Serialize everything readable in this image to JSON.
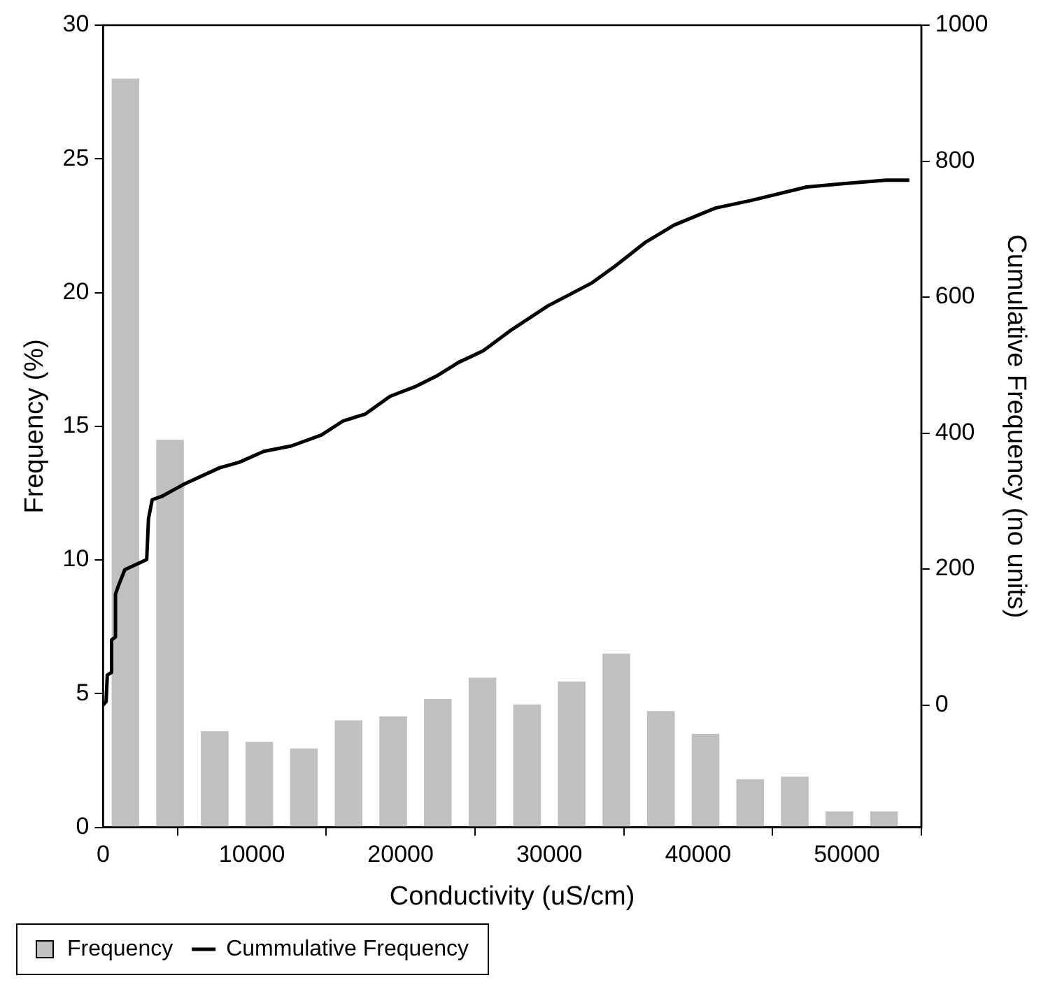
{
  "chart_data": {
    "type": "histogram",
    "xlabel": "Conductivity (uS/cm)",
    "ylabel": "Frequency (%)",
    "y2label": "Cumulative Frequency (no units)",
    "xlim": [
      0,
      55000
    ],
    "xticks": [
      0,
      10000,
      20000,
      30000,
      40000,
      50000
    ],
    "ylim": [
      0,
      30
    ],
    "yticks": [
      0,
      5,
      10,
      15,
      20,
      25,
      30
    ],
    "y2lim": [
      -180,
      1000
    ],
    "y2ticks": [
      0,
      200,
      400,
      600,
      800,
      1000
    ],
    "grid": false,
    "legend": "bottom left",
    "marker": "none",
    "line_style": "solid",
    "series": [
      {
        "name": "Frequency",
        "color": "#c0c0c0",
        "bins": [
          0,
          3000,
          6000,
          9000,
          12000,
          15000,
          18000,
          21000,
          24000,
          27000,
          30000,
          33000,
          36000,
          39000,
          42000,
          45000,
          48000,
          51000,
          54000
        ],
        "values": [
          28,
          14.5,
          3.6,
          3.2,
          2.95,
          4,
          4.15,
          4.8,
          5.6,
          4.6,
          5.45,
          6.5,
          4.35,
          3.5,
          1.8,
          1.9,
          0.6,
          0.6
        ]
      },
      {
        "name": "Cummulative Frequency",
        "type": "line",
        "axis": "y2",
        "color": "#000000",
        "x": [
          0,
          200,
          280,
          570,
          570,
          830,
          830,
          1020,
          1460,
          1940,
          2930,
          3050,
          3300,
          3960,
          5450,
          7840,
          9140,
          10800,
          12650,
          14670,
          16150,
          17630,
          19290,
          20950,
          22430,
          23900,
          25560,
          27330,
          29900,
          32870,
          34450,
          36420,
          38400,
          41170,
          43540,
          47300,
          49880,
          52650,
          54200
        ],
        "values": [
          0,
          5,
          44,
          48,
          96,
          100,
          163,
          175,
          199,
          204,
          214,
          274,
          302,
          307,
          325,
          349,
          357,
          373,
          381,
          397,
          418,
          428,
          454,
          468,
          484,
          504,
          521,
          550,
          587,
          621,
          646,
          680,
          706,
          731,
          742,
          762,
          767,
          772,
          772
        ]
      }
    ]
  }
}
